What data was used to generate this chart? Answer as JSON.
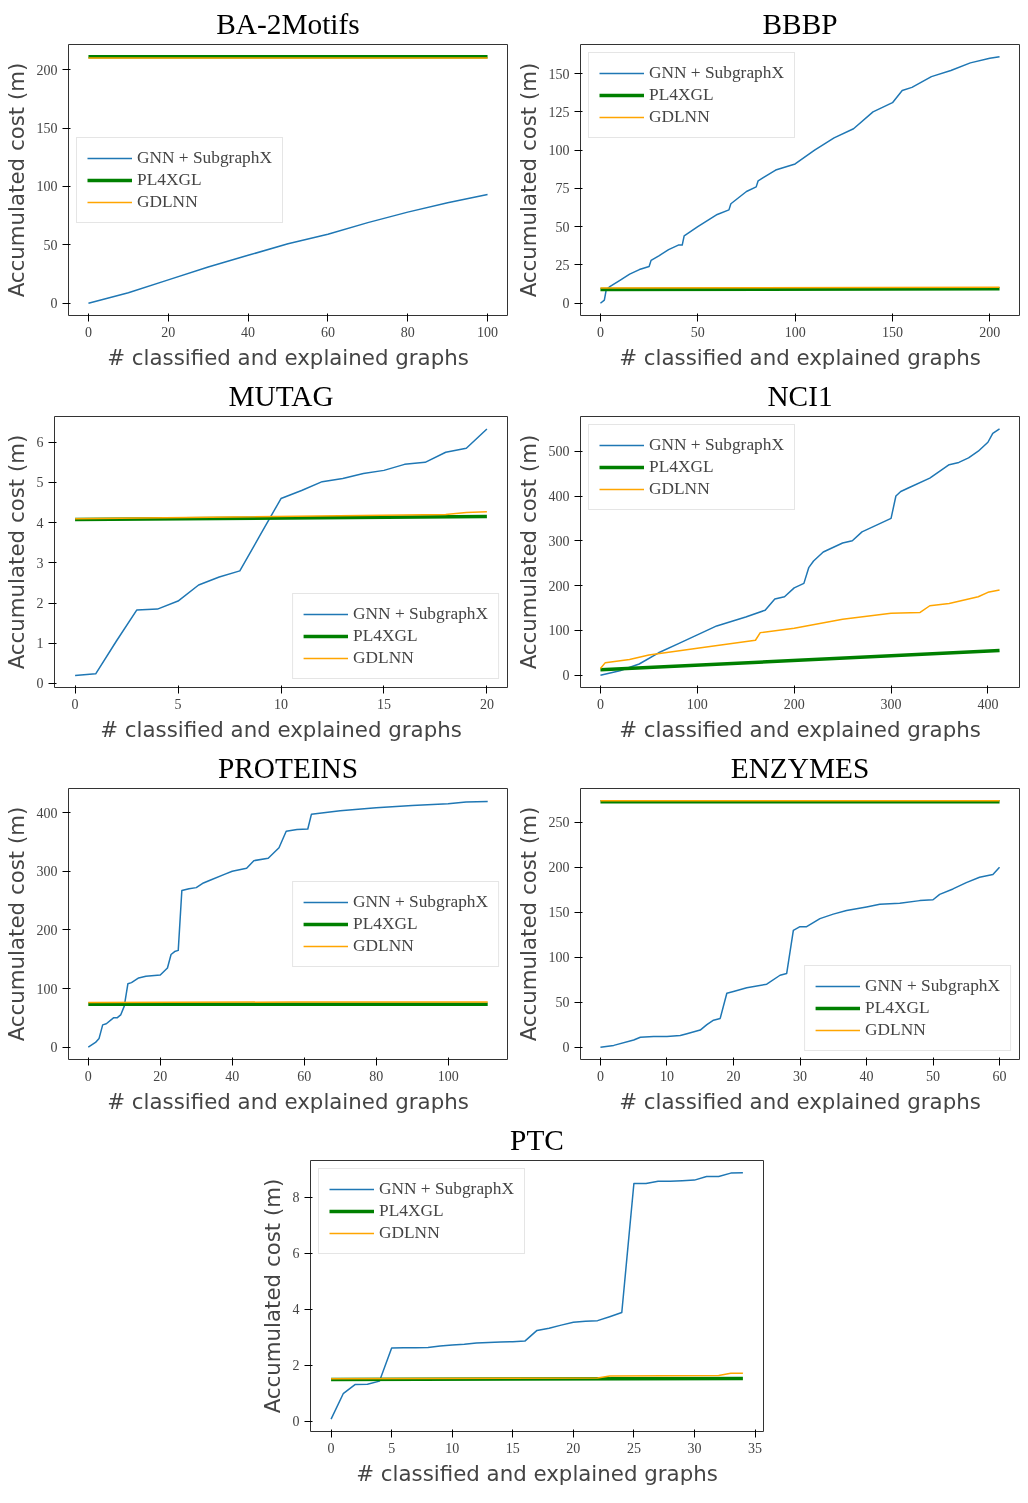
{
  "chart_data": [
    {
      "type": "line",
      "title": "BA-2Motifs",
      "xlabel": "# classified and explained graphs",
      "ylabel": "Accumulated cost (m)",
      "xlim": [
        -5,
        105
      ],
      "ylim": [
        -10.5,
        221.5
      ],
      "xticks": [
        0,
        20,
        40,
        60,
        80,
        100
      ],
      "yticks": [
        0,
        50,
        100,
        150,
        200
      ],
      "legend": "left",
      "series": [
        {
          "name": "GNN + SubgraphX",
          "color": "#1f77b4",
          "x": [
            0,
            10,
            20,
            30,
            40,
            50,
            60,
            70,
            80,
            90,
            100
          ],
          "values": [
            0,
            9,
            20,
            31,
            41,
            51,
            59,
            69,
            78,
            86,
            93
          ]
        },
        {
          "name": "PL4XGL",
          "color": "#008000",
          "x": [
            0,
            100
          ],
          "values": [
            211,
            211
          ]
        },
        {
          "name": "GDLNN",
          "color": "#ffa500",
          "x": [
            0,
            100
          ],
          "values": [
            210,
            210
          ]
        }
      ]
    },
    {
      "type": "line",
      "title": "BBBP",
      "xlabel": "# classified and explained graphs",
      "ylabel": "Accumulated cost (m)",
      "xlim": [
        -10.25,
        215.25
      ],
      "ylim": [
        -8,
        169
      ],
      "xticks": [
        0,
        50,
        100,
        150,
        200
      ],
      "yticks": [
        0,
        25,
        50,
        75,
        100,
        125,
        150
      ],
      "legend": "top left",
      "series": [
        {
          "name": "GNN + SubgraphX",
          "color": "#1f77b4",
          "x": [
            0,
            2,
            3,
            5,
            10,
            15,
            20,
            25,
            26,
            30,
            35,
            40,
            42,
            43,
            50,
            60,
            66,
            67,
            75,
            80,
            81,
            90,
            100,
            110,
            120,
            130,
            140,
            150,
            155,
            160,
            170,
            180,
            190,
            200,
            205
          ],
          "values": [
            0,
            2,
            9,
            11,
            15,
            19,
            22,
            24,
            28,
            31,
            35,
            38,
            38,
            44,
            50,
            58,
            61,
            65,
            73,
            76,
            80,
            87,
            91,
            100,
            108,
            114,
            125,
            131,
            139,
            141,
            148,
            152,
            157,
            160,
            161
          ]
        },
        {
          "name": "PL4XGL",
          "color": "#008000",
          "x": [
            0,
            205
          ],
          "values": [
            9,
            9.5
          ]
        },
        {
          "name": "GDLNN",
          "color": "#ffa500",
          "x": [
            0,
            205
          ],
          "values": [
            10,
            10.5
          ]
        }
      ]
    },
    {
      "type": "line",
      "title": "MUTAG",
      "xlabel": "# classified and explained graphs",
      "ylabel": "Accumulated cost (m)",
      "xlim": [
        -1,
        21
      ],
      "ylim": [
        -0.1,
        6.64
      ],
      "xticks": [
        0,
        5,
        10,
        15,
        20
      ],
      "yticks": [
        0,
        1,
        2,
        3,
        4,
        5,
        6
      ],
      "legend": "bottom right",
      "series": [
        {
          "name": "GNN + SubgraphX",
          "color": "#1f77b4",
          "x": [
            0,
            1,
            2,
            3,
            4,
            5,
            6,
            7,
            8,
            9,
            10,
            11,
            12,
            13,
            14,
            15,
            16,
            17,
            18,
            19,
            20
          ],
          "values": [
            0.2,
            0.24,
            1.05,
            1.83,
            1.85,
            2.05,
            2.45,
            2.65,
            2.8,
            3.7,
            4.6,
            4.8,
            5.02,
            5.1,
            5.22,
            5.3,
            5.45,
            5.5,
            5.75,
            5.85,
            6.33
          ]
        },
        {
          "name": "PL4XGL",
          "color": "#008000",
          "x": [
            0,
            20
          ],
          "values": [
            4.08,
            4.15
          ]
        },
        {
          "name": "GDLNN",
          "color": "#ffa500",
          "x": [
            0,
            18,
            19,
            20
          ],
          "values": [
            4.1,
            4.2,
            4.25,
            4.27
          ]
        }
      ]
    },
    {
      "type": "line",
      "title": "NCI1",
      "xlabel": "# classified and explained graphs",
      "ylabel": "Accumulated cost (m)",
      "xlim": [
        -20.6,
        432.6
      ],
      "ylim": [
        -27.5,
        577.5
      ],
      "xticks": [
        0,
        100,
        200,
        300,
        400
      ],
      "yticks": [
        0,
        100,
        200,
        300,
        400,
        500
      ],
      "legend": "top left",
      "series": [
        {
          "name": "GNN + SubgraphX",
          "color": "#1f77b4",
          "x": [
            0,
            20,
            40,
            60,
            80,
            100,
            120,
            150,
            170,
            180,
            190,
            200,
            210,
            215,
            220,
            230,
            250,
            260,
            270,
            280,
            300,
            305,
            310,
            320,
            340,
            350,
            360,
            370,
            380,
            390,
            400,
            405,
            412
          ],
          "values": [
            0,
            10,
            25,
            50,
            70,
            90,
            110,
            130,
            145,
            170,
            175,
            195,
            205,
            240,
            255,
            275,
            295,
            300,
            320,
            330,
            350,
            400,
            410,
            420,
            440,
            455,
            470,
            475,
            485,
            500,
            520,
            540,
            550
          ]
        },
        {
          "name": "PL4XGL",
          "color": "#008000",
          "x": [
            0,
            412
          ],
          "values": [
            12,
            55
          ]
        },
        {
          "name": "GDLNN",
          "color": "#ffa500",
          "x": [
            0,
            5,
            30,
            50,
            100,
            160,
            165,
            200,
            250,
            300,
            330,
            340,
            360,
            380,
            390,
            400,
            412
          ],
          "values": [
            15,
            28,
            35,
            45,
            60,
            78,
            95,
            105,
            125,
            138,
            140,
            155,
            160,
            170,
            175,
            185,
            190
          ]
        }
      ]
    },
    {
      "type": "line",
      "title": "PROTEINS",
      "xlabel": "# classified and explained graphs",
      "ylabel": "Accumulated cost (m)",
      "xlim": [
        -5.5,
        116.5
      ],
      "ylim": [
        -21,
        441
      ],
      "xticks": [
        0,
        20,
        40,
        60,
        80,
        100
      ],
      "yticks": [
        0,
        100,
        200,
        300,
        400
      ],
      "legend": "right",
      "series": [
        {
          "name": "GNN + SubgraphX",
          "color": "#1f77b4",
          "x": [
            0,
            2,
            3,
            4,
            5,
            7,
            8,
            9,
            10,
            11,
            12,
            14,
            16,
            20,
            22,
            23,
            24,
            25,
            26,
            28,
            30,
            32,
            34,
            38,
            40,
            44,
            46,
            50,
            53,
            55,
            58,
            61,
            62,
            70,
            80,
            90,
            100,
            105,
            111
          ],
          "values": [
            0,
            8,
            15,
            38,
            40,
            50,
            50,
            55,
            70,
            108,
            110,
            118,
            121,
            123,
            135,
            158,
            163,
            165,
            267,
            270,
            272,
            280,
            285,
            295,
            300,
            305,
            318,
            322,
            340,
            368,
            371,
            372,
            397,
            403,
            408,
            412,
            415,
            418,
            419
          ]
        },
        {
          "name": "PL4XGL",
          "color": "#008000",
          "x": [
            0,
            111
          ],
          "values": [
            73,
            73
          ]
        },
        {
          "name": "GDLNN",
          "color": "#ffa500",
          "x": [
            0,
            57,
            111
          ],
          "values": [
            76,
            77,
            77
          ]
        }
      ]
    },
    {
      "type": "line",
      "title": "ENZYMES",
      "xlabel": "# classified and explained graphs",
      "ylabel": "Accumulated cost (m)",
      "xlim": [
        -3,
        63
      ],
      "ylim": [
        -13.7,
        287.7
      ],
      "xticks": [
        0,
        10,
        20,
        30,
        40,
        50,
        60
      ],
      "yticks": [
        0,
        50,
        100,
        150,
        200,
        250
      ],
      "legend": "bottom right",
      "series": [
        {
          "name": "GNN + SubgraphX",
          "color": "#1f77b4",
          "x": [
            0,
            2,
            5,
            6,
            8,
            10,
            12,
            13,
            15,
            16,
            17,
            18,
            19,
            20,
            22,
            25,
            27,
            28,
            29,
            30,
            31,
            33,
            35,
            37,
            40,
            42,
            45,
            48,
            50,
            51,
            53,
            55,
            57,
            59,
            60
          ],
          "values": [
            0,
            2,
            8,
            11,
            12,
            12,
            13,
            15,
            19,
            25,
            30,
            32,
            60,
            62,
            66,
            70,
            80,
            82,
            130,
            134,
            134,
            143,
            148,
            152,
            156,
            159,
            160,
            163,
            164,
            170,
            176,
            183,
            189,
            192,
            200
          ]
        },
        {
          "name": "PL4XGL",
          "color": "#008000",
          "x": [
            0,
            60
          ],
          "values": [
            273,
            273
          ]
        },
        {
          "name": "GDLNN",
          "color": "#ffa500",
          "x": [
            0,
            60
          ],
          "values": [
            274,
            274
          ]
        }
      ]
    },
    {
      "type": "line",
      "title": "PTC",
      "xlabel": "# classified and explained graphs",
      "ylabel": "Accumulated cost (m)",
      "xlim": [
        -1.7,
        35.7
      ],
      "ylim": [
        -0.36,
        9.32
      ],
      "xticks": [
        0,
        5,
        10,
        15,
        20,
        25,
        30,
        35
      ],
      "yticks": [
        0,
        2,
        4,
        6,
        8
      ],
      "legend": "top left",
      "series": [
        {
          "name": "GNN + SubgraphX",
          "color": "#1f77b4",
          "x": [
            0,
            1,
            2,
            3,
            4,
            5,
            6,
            7,
            8,
            9,
            10,
            11,
            12,
            13,
            14,
            15,
            16,
            17,
            18,
            19,
            20,
            21,
            22,
            23,
            24,
            25,
            26,
            27,
            28,
            29,
            30,
            31,
            32,
            33,
            34
          ],
          "values": [
            0.08,
            0.99,
            1.32,
            1.33,
            1.44,
            2.62,
            2.63,
            2.63,
            2.64,
            2.69,
            2.73,
            2.76,
            2.8,
            2.82,
            2.84,
            2.85,
            2.87,
            3.25,
            3.33,
            3.44,
            3.54,
            3.58,
            3.6,
            3.74,
            3.89,
            8.5,
            8.5,
            8.58,
            8.58,
            8.6,
            8.62,
            8.75,
            8.75,
            8.87,
            8.88
          ]
        },
        {
          "name": "PL4XGL",
          "color": "#008000",
          "x": [
            0,
            34
          ],
          "values": [
            1.5,
            1.53
          ]
        },
        {
          "name": "GDLNN",
          "color": "#ffa500",
          "x": [
            0,
            22,
            23,
            32,
            33,
            34
          ],
          "values": [
            1.52,
            1.55,
            1.62,
            1.64,
            1.72,
            1.72
          ]
        }
      ]
    }
  ]
}
